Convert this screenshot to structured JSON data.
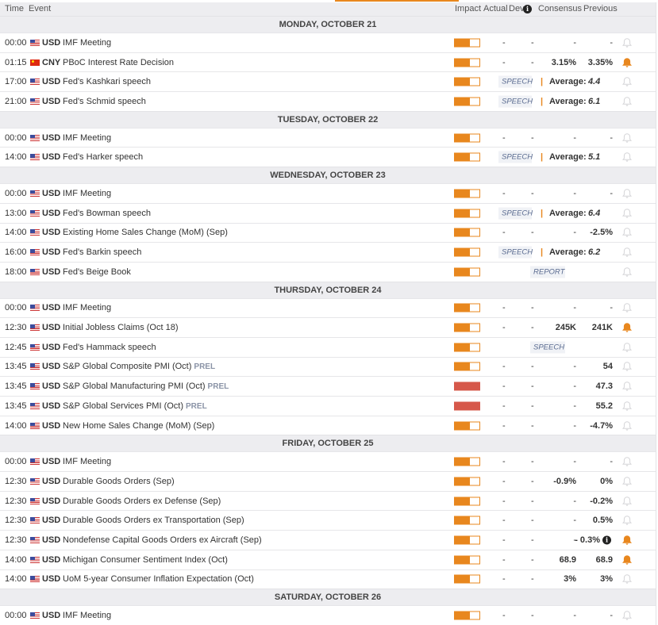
{
  "columns": {
    "time": "Time",
    "event": "Event",
    "impact": "Impact",
    "actual": "Actual",
    "dev": "Dev",
    "consensus": "Consensus",
    "previous": "Previous"
  },
  "colors": {
    "accent": "#e8871e",
    "high_impact": "#d6584a",
    "header_bg": "#ededf0"
  },
  "days": [
    {
      "label": "MONDAY, OCTOBER 21",
      "events": [
        {
          "time": "00:00",
          "flag": "usd",
          "currency": "USD",
          "event": "IMF Meeting",
          "impact": "medium",
          "actual": "-",
          "dev": "-",
          "consensus": "-",
          "previous": "-",
          "alert": false
        },
        {
          "time": "01:15",
          "flag": "cny",
          "currency": "CNY",
          "event": "PBoC Interest Rate Decision",
          "impact": "medium",
          "actual": "-",
          "dev": "-",
          "consensus": "3.15%",
          "previous": "3.35%",
          "alert": true
        },
        {
          "time": "17:00",
          "flag": "usd",
          "currency": "USD",
          "event": "Fed's Kashkari speech",
          "impact": "medium",
          "badge": "SPEECH",
          "avg_label": "Average:",
          "avg_value": "4.4",
          "alert": false
        },
        {
          "time": "21:00",
          "flag": "usd",
          "currency": "USD",
          "event": "Fed's Schmid speech",
          "impact": "medium",
          "badge": "SPEECH",
          "avg_label": "Average:",
          "avg_value": "6.1",
          "alert": false
        }
      ]
    },
    {
      "label": "TUESDAY, OCTOBER 22",
      "events": [
        {
          "time": "00:00",
          "flag": "usd",
          "currency": "USD",
          "event": "IMF Meeting",
          "impact": "medium",
          "actual": "-",
          "dev": "-",
          "consensus": "-",
          "previous": "-",
          "alert": false
        },
        {
          "time": "14:00",
          "flag": "usd",
          "currency": "USD",
          "event": "Fed's Harker speech",
          "impact": "medium",
          "badge": "SPEECH",
          "avg_label": "Average:",
          "avg_value": "5.1",
          "alert": false
        }
      ]
    },
    {
      "label": "WEDNESDAY, OCTOBER 23",
      "events": [
        {
          "time": "00:00",
          "flag": "usd",
          "currency": "USD",
          "event": "IMF Meeting",
          "impact": "medium",
          "actual": "-",
          "dev": "-",
          "consensus": "-",
          "previous": "-",
          "alert": false
        },
        {
          "time": "13:00",
          "flag": "usd",
          "currency": "USD",
          "event": "Fed's Bowman speech",
          "impact": "medium",
          "badge": "SPEECH",
          "avg_label": "Average:",
          "avg_value": "6.4",
          "alert": false
        },
        {
          "time": "14:00",
          "flag": "usd",
          "currency": "USD",
          "event": "Existing Home Sales Change (MoM) (Sep)",
          "impact": "medium",
          "actual": "-",
          "dev": "-",
          "consensus": "-",
          "previous": "-2.5%",
          "alert": false
        },
        {
          "time": "16:00",
          "flag": "usd",
          "currency": "USD",
          "event": "Fed's Barkin speech",
          "impact": "medium",
          "badge": "SPEECH",
          "avg_label": "Average:",
          "avg_value": "6.2",
          "alert": false
        },
        {
          "time": "18:00",
          "flag": "usd",
          "currency": "USD",
          "event": "Fed's Beige Book",
          "impact": "medium",
          "center_badge": "REPORT",
          "alert": false
        }
      ]
    },
    {
      "label": "THURSDAY, OCTOBER 24",
      "events": [
        {
          "time": "00:00",
          "flag": "usd",
          "currency": "USD",
          "event": "IMF Meeting",
          "impact": "medium",
          "actual": "-",
          "dev": "-",
          "consensus": "-",
          "previous": "-",
          "alert": false
        },
        {
          "time": "12:30",
          "flag": "usd",
          "currency": "USD",
          "event": "Initial Jobless Claims (Oct 18)",
          "impact": "medium",
          "actual": "-",
          "dev": "-",
          "consensus": "245K",
          "previous": "241K",
          "alert": true
        },
        {
          "time": "12:45",
          "flag": "usd",
          "currency": "USD",
          "event": "Fed's Hammack speech",
          "impact": "medium",
          "center_badge": "SPEECH",
          "alert": false
        },
        {
          "time": "13:45",
          "flag": "usd",
          "currency": "USD",
          "event": "S&P Global Composite PMI (Oct)",
          "tag": "PREL",
          "impact": "medium",
          "actual": "-",
          "dev": "-",
          "consensus": "-",
          "previous": "54",
          "alert": false
        },
        {
          "time": "13:45",
          "flag": "usd",
          "currency": "USD",
          "event": "S&P Global Manufacturing PMI (Oct)",
          "tag": "PREL",
          "impact": "high",
          "actual": "-",
          "dev": "-",
          "consensus": "-",
          "previous": "47.3",
          "alert": false
        },
        {
          "time": "13:45",
          "flag": "usd",
          "currency": "USD",
          "event": "S&P Global Services PMI (Oct)",
          "tag": "PREL",
          "impact": "high",
          "actual": "-",
          "dev": "-",
          "consensus": "-",
          "previous": "55.2",
          "alert": false
        },
        {
          "time": "14:00",
          "flag": "usd",
          "currency": "USD",
          "event": "New Home Sales Change (MoM) (Sep)",
          "impact": "medium",
          "actual": "-",
          "dev": "-",
          "consensus": "-",
          "previous": "-4.7%",
          "alert": false
        }
      ]
    },
    {
      "label": "FRIDAY, OCTOBER 25",
      "events": [
        {
          "time": "00:00",
          "flag": "usd",
          "currency": "USD",
          "event": "IMF Meeting",
          "impact": "medium",
          "actual": "-",
          "dev": "-",
          "consensus": "-",
          "previous": "-",
          "alert": false
        },
        {
          "time": "12:30",
          "flag": "usd",
          "currency": "USD",
          "event": "Durable Goods Orders (Sep)",
          "impact": "medium",
          "actual": "-",
          "dev": "-",
          "consensus": "-0.9%",
          "previous": "0%",
          "alert": false
        },
        {
          "time": "12:30",
          "flag": "usd",
          "currency": "USD",
          "event": "Durable Goods Orders ex Defense (Sep)",
          "impact": "medium",
          "actual": "-",
          "dev": "-",
          "consensus": "-",
          "previous": "-0.2%",
          "alert": false
        },
        {
          "time": "12:30",
          "flag": "usd",
          "currency": "USD",
          "event": "Durable Goods Orders ex Transportation (Sep)",
          "impact": "medium",
          "actual": "-",
          "dev": "-",
          "consensus": "-",
          "previous": "0.5%",
          "alert": false
        },
        {
          "time": "12:30",
          "flag": "usd",
          "currency": "USD",
          "event": "Nondefense Capital Goods Orders ex Aircraft (Sep)",
          "impact": "medium",
          "actual": "-",
          "dev": "-",
          "consensus": "-",
          "previous": "0.3%",
          "prev_info": true,
          "alert": true
        },
        {
          "time": "14:00",
          "flag": "usd",
          "currency": "USD",
          "event": "Michigan Consumer Sentiment Index (Oct)",
          "impact": "medium",
          "actual": "-",
          "dev": "-",
          "consensus": "68.9",
          "previous": "68.9",
          "alert": true
        },
        {
          "time": "14:00",
          "flag": "usd",
          "currency": "USD",
          "event": "UoM 5-year Consumer Inflation Expectation (Oct)",
          "impact": "medium",
          "actual": "-",
          "dev": "-",
          "consensus": "3%",
          "previous": "3%",
          "alert": false
        }
      ]
    },
    {
      "label": "SATURDAY, OCTOBER 26",
      "events": [
        {
          "time": "00:00",
          "flag": "usd",
          "currency": "USD",
          "event": "IMF Meeting",
          "impact": "medium",
          "actual": "-",
          "dev": "-",
          "consensus": "-",
          "previous": "-",
          "alert": false
        }
      ]
    }
  ]
}
